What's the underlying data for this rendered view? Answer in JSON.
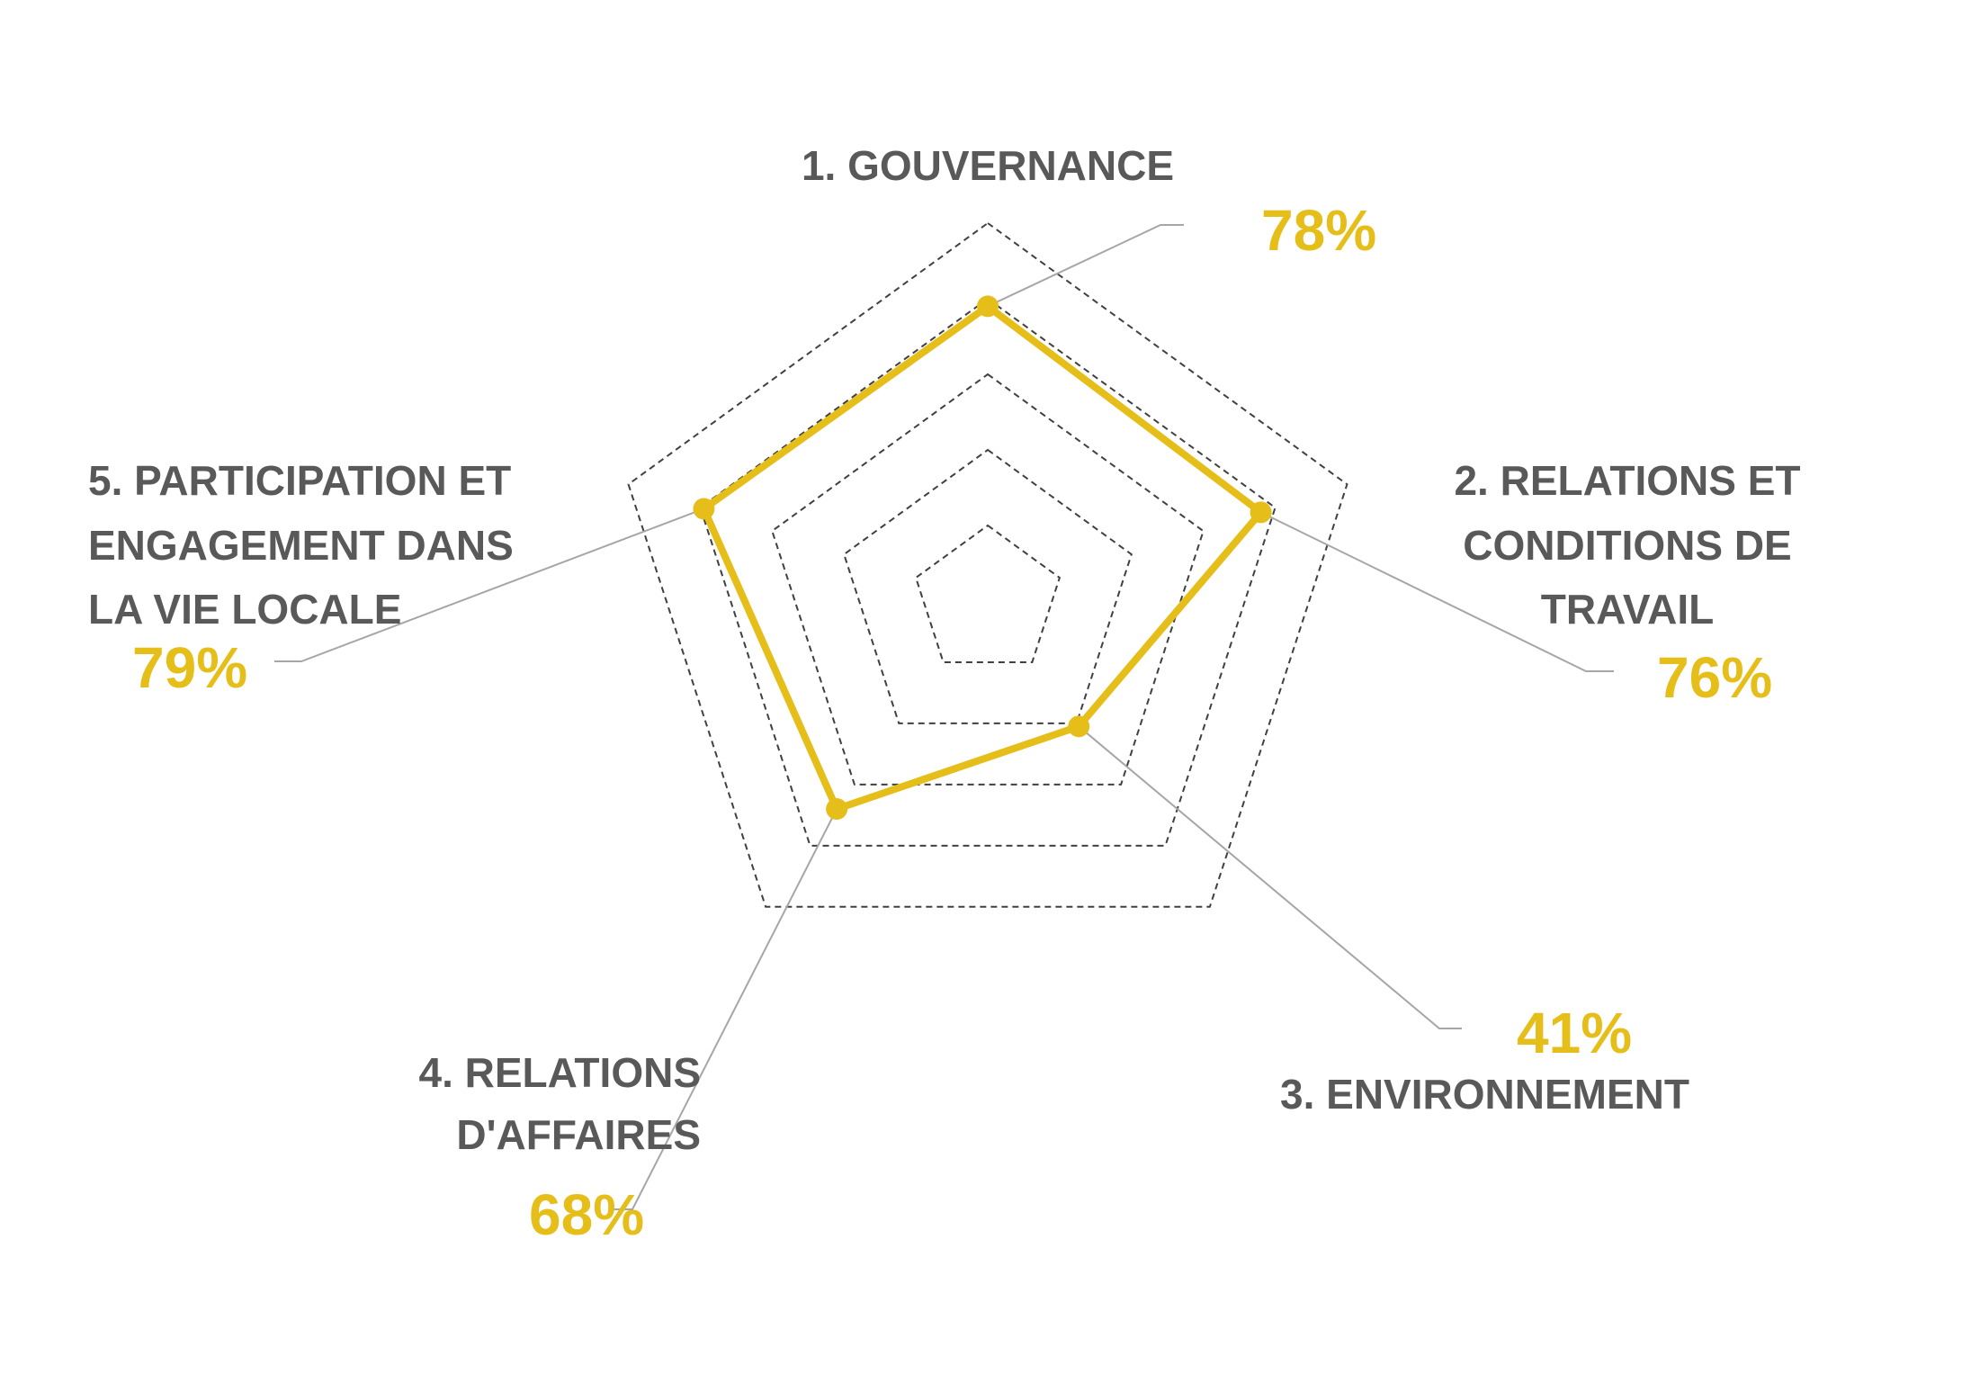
{
  "chart_data": {
    "type": "radar",
    "categories": [
      "1. GOUVERNANCE",
      "2. RELATIONS ET CONDITIONS DE TRAVAIL",
      "3. ENVIRONNEMENT",
      "4. RELATIONS D'AFFAIRES",
      "5. PARTICIPATION ET ENGAGEMENT DANS LA VIE LOCALE"
    ],
    "category_lines": [
      [
        "1. GOUVERNANCE"
      ],
      [
        "2. RELATIONS ET",
        "CONDITIONS DE",
        "TRAVAIL"
      ],
      [
        "3. ENVIRONNEMENT"
      ],
      [
        "4. RELATIONS",
        "D'AFFAIRES"
      ],
      [
        "5. PARTICIPATION ET",
        "ENGAGEMENT DANS",
        "LA VIE LOCALE"
      ]
    ],
    "values": [
      78,
      76,
      41,
      68,
      79
    ],
    "value_labels": [
      "78%",
      "76%",
      "41%",
      "68%",
      "79%"
    ],
    "rlim": [
      0,
      100
    ],
    "ring_count": 5,
    "grid": "dashed",
    "legend": "none",
    "colors": {
      "series": "#E6BE1A",
      "grid": "#404040",
      "leader": "#A6A6A6",
      "axis_label": "#595959"
    }
  }
}
